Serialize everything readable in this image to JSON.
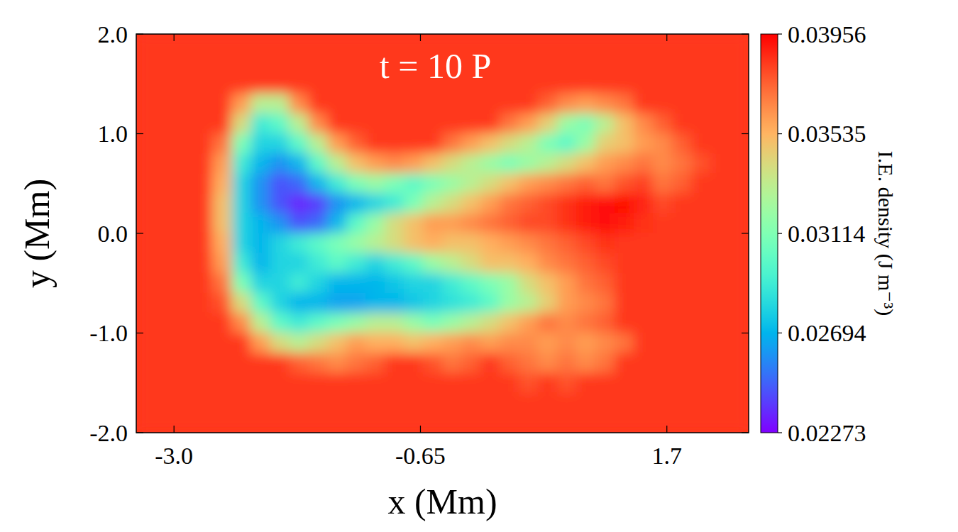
{
  "chart_data": {
    "type": "heatmap",
    "annotation": "t = 10 P",
    "xlabel": "x (Mm)",
    "ylabel": "y (Mm)",
    "color": "rainbow",
    "xlim": [
      -3.36,
      2.48
    ],
    "ylim": [
      -2.0,
      2.0
    ],
    "xticks": [
      {
        "value": -3.0,
        "label": "-3.0"
      },
      -0.65,
      1.7
    ],
    "yticks": [
      {
        "value": -2.0,
        "label": "-2.0"
      },
      {
        "value": -1.0,
        "label": "-1.0"
      },
      {
        "value": 0.0,
        "label": "0.0"
      },
      {
        "value": 1.0,
        "label": "1.0"
      },
      {
        "value": 2.0,
        "label": "2.0"
      }
    ],
    "x": [
      -3.269,
      -3.086,
      -2.904,
      -2.721,
      -2.539,
      -2.356,
      -2.174,
      -1.991,
      -1.809,
      -1.626,
      -1.444,
      -1.261,
      -1.079,
      -0.896,
      -0.714,
      -0.531,
      -0.349,
      -0.166,
      0.016,
      0.199,
      0.381,
      0.564,
      0.746,
      0.929,
      1.111,
      1.294,
      1.476,
      1.659,
      1.841,
      2.024,
      2.206,
      2.389
    ],
    "y": [
      1.9,
      1.7,
      1.5,
      1.3,
      1.1,
      0.9,
      0.7,
      0.5,
      0.3,
      0.1,
      -0.1,
      -0.3,
      -0.5,
      -0.7,
      -0.9,
      -1.1,
      -1.3,
      -1.5,
      -1.7,
      -1.9
    ],
    "cells": [
      [
        0.0384,
        0.0384,
        0.0384,
        0.0384,
        0.0384,
        0.0384,
        0.0384,
        0.0384,
        0.0384,
        0.0384,
        0.0384,
        0.0384,
        0.0384,
        0.0384,
        0.0384,
        0.0384,
        0.0384,
        0.0384,
        0.0384,
        0.0384,
        0.0384,
        0.0384,
        0.0384,
        0.0384,
        0.0384,
        0.0384,
        0.0384,
        0.0384,
        0.0384,
        0.0384,
        0.0384,
        0.0384
      ],
      [
        0.0384,
        0.0384,
        0.0384,
        0.0384,
        0.0384,
        0.0384,
        0.0384,
        0.0384,
        0.0384,
        0.0384,
        0.0384,
        0.0384,
        0.0384,
        0.0384,
        0.0384,
        0.0384,
        0.0384,
        0.0384,
        0.0384,
        0.0384,
        0.0384,
        0.0384,
        0.0384,
        0.0384,
        0.0384,
        0.0384,
        0.0384,
        0.0384,
        0.0384,
        0.0384,
        0.0384,
        0.0384
      ],
      [
        0.0384,
        0.0384,
        0.0384,
        0.0384,
        0.0384,
        0.0384,
        0.0384,
        0.0384,
        0.0384,
        0.0384,
        0.0384,
        0.0384,
        0.0384,
        0.0384,
        0.0384,
        0.0384,
        0.0384,
        0.0384,
        0.0384,
        0.0384,
        0.0384,
        0.0384,
        0.0384,
        0.0384,
        0.0384,
        0.0384,
        0.0384,
        0.0384,
        0.0384,
        0.0384,
        0.0384,
        0.0384
      ],
      [
        0.0384,
        0.0384,
        0.0384,
        0.0384,
        0.0384,
        0.036,
        0.033,
        0.033,
        0.0365,
        0.0384,
        0.0384,
        0.0384,
        0.0384,
        0.0384,
        0.0384,
        0.0384,
        0.0384,
        0.0384,
        0.0384,
        0.0384,
        0.0384,
        0.0375,
        0.0365,
        0.036,
        0.0365,
        0.037,
        0.0384,
        0.0384,
        0.0384,
        0.0384,
        0.0384,
        0.0384
      ],
      [
        0.0384,
        0.0384,
        0.0384,
        0.0384,
        0.0384,
        0.034,
        0.029,
        0.03,
        0.033,
        0.0365,
        0.0384,
        0.0384,
        0.0384,
        0.0384,
        0.0384,
        0.0384,
        0.0384,
        0.0384,
        0.0384,
        0.037,
        0.036,
        0.0345,
        0.032,
        0.031,
        0.033,
        0.035,
        0.0365,
        0.0375,
        0.0384,
        0.0384,
        0.0384,
        0.0384
      ],
      [
        0.0384,
        0.0384,
        0.0384,
        0.0384,
        0.037,
        0.031,
        0.028,
        0.028,
        0.03,
        0.033,
        0.036,
        0.0375,
        0.0384,
        0.0384,
        0.0384,
        0.0384,
        0.037,
        0.036,
        0.035,
        0.034,
        0.033,
        0.031,
        0.03,
        0.032,
        0.0345,
        0.035,
        0.036,
        0.0365,
        0.0375,
        0.0384,
        0.0384,
        0.0384
      ],
      [
        0.0384,
        0.0384,
        0.0384,
        0.0384,
        0.036,
        0.029,
        0.027,
        0.026,
        0.027,
        0.03,
        0.033,
        0.035,
        0.036,
        0.0365,
        0.036,
        0.035,
        0.034,
        0.033,
        0.032,
        0.031,
        0.032,
        0.033,
        0.034,
        0.035,
        0.036,
        0.0365,
        0.037,
        0.0365,
        0.037,
        0.0378,
        0.0384,
        0.0384
      ],
      [
        0.0384,
        0.0384,
        0.0384,
        0.0384,
        0.0355,
        0.028,
        0.026,
        0.0245,
        0.025,
        0.027,
        0.029,
        0.031,
        0.032,
        0.031,
        0.03,
        0.031,
        0.032,
        0.033,
        0.034,
        0.035,
        0.036,
        0.0365,
        0.037,
        0.0375,
        0.037,
        0.0378,
        0.0382,
        0.037,
        0.0375,
        0.0384,
        0.0384,
        0.0384
      ],
      [
        0.0384,
        0.0384,
        0.0384,
        0.0384,
        0.035,
        0.028,
        0.026,
        0.0245,
        0.0235,
        0.024,
        0.026,
        0.027,
        0.028,
        0.029,
        0.031,
        0.033,
        0.034,
        0.035,
        0.036,
        0.037,
        0.0375,
        0.038,
        0.0385,
        0.039,
        0.0392,
        0.0393,
        0.0388,
        0.038,
        0.0384,
        0.0384,
        0.0384,
        0.0384
      ],
      [
        0.0384,
        0.0384,
        0.0384,
        0.0384,
        0.035,
        0.028,
        0.027,
        0.026,
        0.0245,
        0.025,
        0.027,
        0.03,
        0.032,
        0.034,
        0.035,
        0.036,
        0.036,
        0.0365,
        0.037,
        0.0375,
        0.038,
        0.038,
        0.0385,
        0.039,
        0.0392,
        0.039,
        0.0385,
        0.0384,
        0.0384,
        0.0384,
        0.0384,
        0.0384
      ],
      [
        0.0384,
        0.0384,
        0.0384,
        0.0384,
        0.0355,
        0.028,
        0.027,
        0.028,
        0.029,
        0.03,
        0.031,
        0.032,
        0.033,
        0.034,
        0.035,
        0.0355,
        0.035,
        0.035,
        0.0355,
        0.036,
        0.0365,
        0.037,
        0.0375,
        0.038,
        0.0385,
        0.0384,
        0.0384,
        0.0384,
        0.0384,
        0.0384,
        0.0384,
        0.0384
      ],
      [
        0.0384,
        0.0384,
        0.0384,
        0.0384,
        0.036,
        0.029,
        0.027,
        0.028,
        0.028,
        0.029,
        0.03,
        0.029,
        0.028,
        0.029,
        0.03,
        0.032,
        0.033,
        0.034,
        0.035,
        0.035,
        0.0355,
        0.0365,
        0.037,
        0.0375,
        0.038,
        0.0384,
        0.0384,
        0.0384,
        0.0384,
        0.0384,
        0.0384,
        0.0384
      ],
      [
        0.0384,
        0.0384,
        0.0384,
        0.0384,
        0.037,
        0.031,
        0.028,
        0.028,
        0.029,
        0.028,
        0.027,
        0.027,
        0.027,
        0.0275,
        0.028,
        0.028,
        0.029,
        0.03,
        0.031,
        0.032,
        0.034,
        0.035,
        0.036,
        0.037,
        0.0375,
        0.0384,
        0.0384,
        0.0384,
        0.0384,
        0.0384,
        0.0384,
        0.0384
      ],
      [
        0.0384,
        0.0384,
        0.0384,
        0.0384,
        0.0378,
        0.034,
        0.03,
        0.028,
        0.027,
        0.027,
        0.0265,
        0.0265,
        0.027,
        0.027,
        0.0275,
        0.028,
        0.0285,
        0.029,
        0.03,
        0.032,
        0.033,
        0.0345,
        0.036,
        0.0365,
        0.037,
        0.0384,
        0.0384,
        0.0384,
        0.0384,
        0.0384,
        0.0384,
        0.0384
      ],
      [
        0.0384,
        0.0384,
        0.0384,
        0.0384,
        0.0384,
        0.0365,
        0.033,
        0.03,
        0.029,
        0.03,
        0.031,
        0.032,
        0.033,
        0.033,
        0.032,
        0.031,
        0.032,
        0.033,
        0.034,
        0.035,
        0.036,
        0.037,
        0.0365,
        0.037,
        0.0375,
        0.0384,
        0.0384,
        0.0384,
        0.0384,
        0.0384,
        0.0384,
        0.0384
      ],
      [
        0.0384,
        0.0384,
        0.0384,
        0.0384,
        0.0384,
        0.0384,
        0.036,
        0.034,
        0.033,
        0.034,
        0.035,
        0.036,
        0.0355,
        0.0355,
        0.035,
        0.0355,
        0.036,
        0.0365,
        0.036,
        0.0365,
        0.0365,
        0.036,
        0.0365,
        0.036,
        0.0365,
        0.037,
        0.0384,
        0.0384,
        0.0384,
        0.0384,
        0.0384,
        0.0384
      ],
      [
        0.0384,
        0.0384,
        0.0384,
        0.0384,
        0.0384,
        0.0384,
        0.0384,
        0.0384,
        0.0375,
        0.037,
        0.0365,
        0.037,
        0.0375,
        0.0384,
        0.0384,
        0.0378,
        0.037,
        0.0375,
        0.0384,
        0.0375,
        0.037,
        0.0365,
        0.037,
        0.0365,
        0.037,
        0.0384,
        0.0384,
        0.0384,
        0.0384,
        0.0384,
        0.0384,
        0.0384
      ],
      [
        0.0384,
        0.0384,
        0.0384,
        0.0384,
        0.0384,
        0.0384,
        0.0384,
        0.0384,
        0.0384,
        0.0384,
        0.0384,
        0.0384,
        0.0384,
        0.0384,
        0.0384,
        0.0384,
        0.0384,
        0.0384,
        0.0384,
        0.0384,
        0.0378,
        0.0384,
        0.0378,
        0.0384,
        0.0384,
        0.0384,
        0.0384,
        0.0384,
        0.0384,
        0.0384,
        0.0384,
        0.0384
      ],
      [
        0.0384,
        0.0384,
        0.0384,
        0.0384,
        0.0384,
        0.0384,
        0.0384,
        0.0384,
        0.0384,
        0.0384,
        0.0384,
        0.0384,
        0.0384,
        0.0384,
        0.0384,
        0.0384,
        0.0384,
        0.0384,
        0.0384,
        0.0384,
        0.0384,
        0.0384,
        0.0384,
        0.0384,
        0.0384,
        0.0384,
        0.0384,
        0.0384,
        0.0384,
        0.0384,
        0.0384,
        0.0384
      ],
      [
        0.0384,
        0.0384,
        0.0384,
        0.0384,
        0.0384,
        0.0384,
        0.0384,
        0.0384,
        0.0384,
        0.0384,
        0.0384,
        0.0384,
        0.0384,
        0.0384,
        0.0384,
        0.0384,
        0.0384,
        0.0384,
        0.0384,
        0.0384,
        0.0384,
        0.0384,
        0.0384,
        0.0384,
        0.0384,
        0.0384,
        0.0384,
        0.0384,
        0.0384,
        0.0384,
        0.0384,
        0.0384
      ]
    ],
    "colorbar": {
      "label": "I.E. density (J m⁻³)",
      "range": [
        0.02273,
        0.03956
      ],
      "ticks": [
        0.02273,
        0.02694,
        0.03114,
        0.03535,
        0.03956
      ]
    }
  }
}
